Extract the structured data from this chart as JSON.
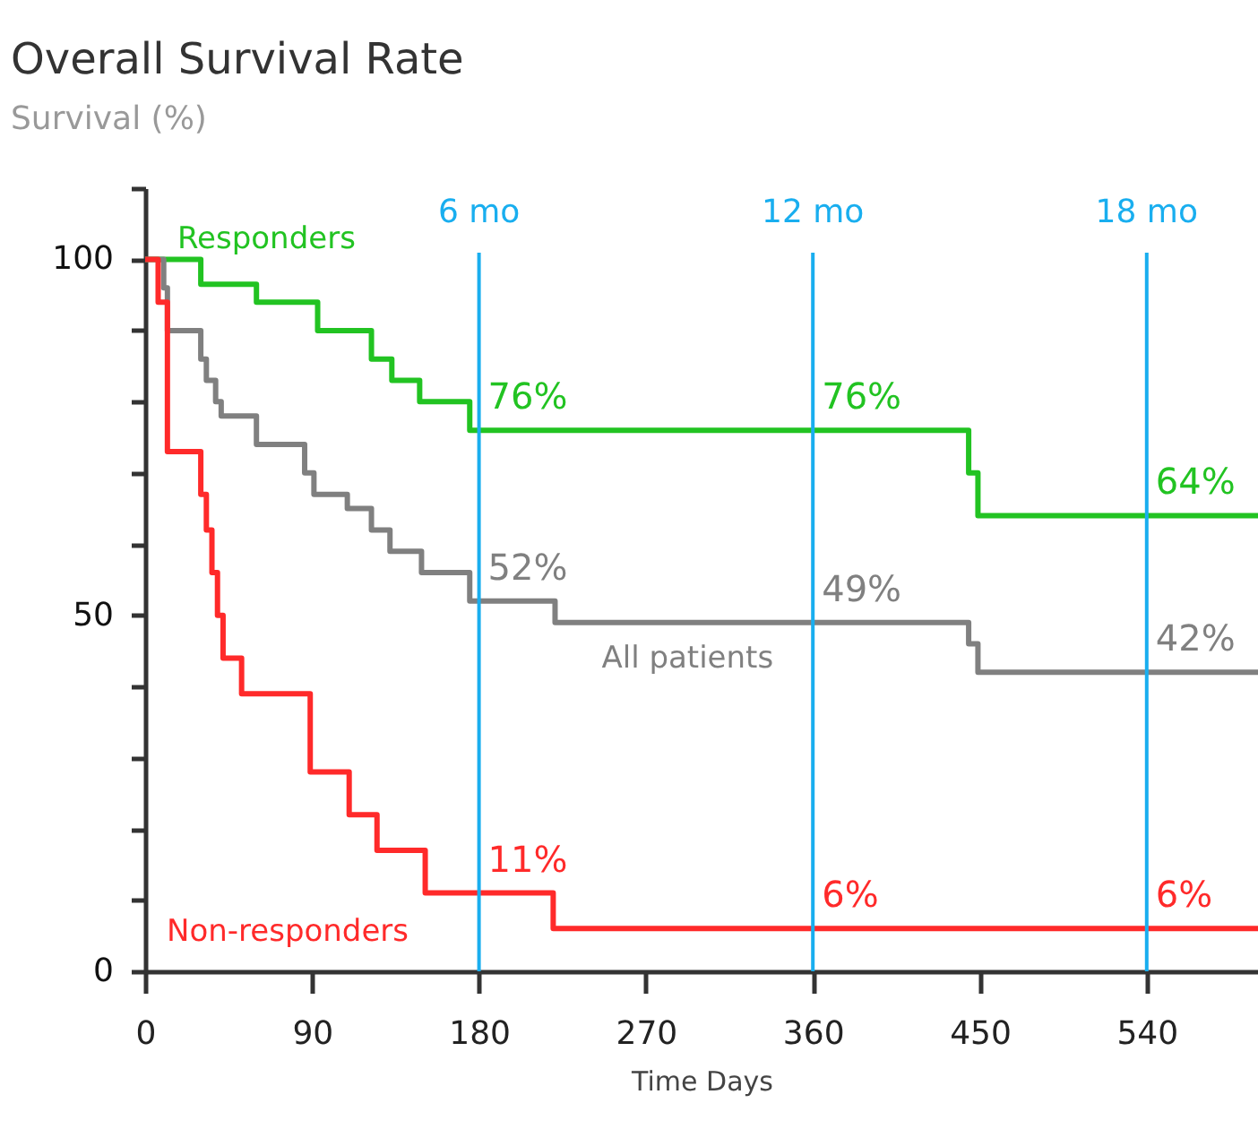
{
  "chart_data": {
    "type": "step",
    "title": "Overall Survival Rate",
    "ylabel": "Survival (%)",
    "xlabel": "Time Days",
    "xlim": [
      0,
      600
    ],
    "xticks": [
      0,
      90,
      180,
      270,
      360,
      450,
      540
    ],
    "ylim": [
      0,
      110
    ],
    "yticks": [
      {
        "value": 0,
        "label": "0"
      },
      {
        "value": 10,
        "label": null
      },
      {
        "value": 20,
        "label": null
      },
      {
        "value": 30,
        "label": null
      },
      {
        "value": 40,
        "label": null
      },
      {
        "value": 50,
        "label": "50"
      },
      {
        "value": 60,
        "label": null
      },
      {
        "value": 70,
        "label": null
      },
      {
        "value": 80,
        "label": null
      },
      {
        "value": 90,
        "label": null
      },
      {
        "value": 100,
        "label": "100"
      },
      {
        "value": 110,
        "label": null
      }
    ],
    "grid": false,
    "marker": "none",
    "line_style": "solid",
    "series": [
      {
        "name": "Responders",
        "color": "#22c322",
        "x": [
          0,
          30,
          60,
          93,
          122,
          133,
          148,
          175,
          444,
          449,
          600
        ],
        "values": [
          100,
          96.5,
          94,
          90,
          86,
          83,
          80,
          76,
          70,
          64,
          64
        ]
      },
      {
        "name": "All patients",
        "color": "#808080",
        "x": [
          0,
          10,
          12,
          30,
          33,
          38,
          41,
          60,
          86,
          91,
          109,
          122,
          132,
          149,
          175,
          221,
          444,
          449,
          600
        ],
        "values": [
          100,
          96,
          90,
          86,
          83,
          80,
          78,
          74,
          70,
          67,
          65,
          62,
          59,
          56,
          52,
          49,
          46,
          42,
          42
        ]
      },
      {
        "name": "Non-responders",
        "color": "#ff2a2a",
        "x": [
          0,
          7,
          12,
          30,
          33,
          36,
          39,
          42,
          52,
          89,
          110,
          125,
          151,
          220,
          600
        ],
        "values": [
          100,
          94,
          73,
          67,
          62,
          56,
          50,
          44,
          39,
          28,
          22,
          17,
          11,
          6,
          6
        ]
      }
    ],
    "ref_lines": [
      {
        "axis": "x",
        "value": 180,
        "label": "6 mo",
        "color": "#19aeef"
      },
      {
        "axis": "x",
        "value": 360,
        "label": "12 mo",
        "color": "#19aeef"
      },
      {
        "axis": "x",
        "value": 540,
        "label": "18 mo",
        "color": "#19aeef"
      }
    ],
    "annotations": [
      {
        "text": "76%",
        "x": 180,
        "y": 76
      },
      {
        "text": "52%",
        "x": 180,
        "y": 52
      },
      {
        "text": "11%",
        "x": 180,
        "y": 11
      },
      {
        "text": "76%",
        "x": 360,
        "y": 76
      },
      {
        "text": "49%",
        "x": 360,
        "y": 49
      },
      {
        "text": "6%",
        "x": 360,
        "y": 6
      },
      {
        "text": "64%",
        "x": 540,
        "y": 64
      },
      {
        "text": "42%",
        "x": 540,
        "y": 42
      },
      {
        "text": "6%",
        "x": 540,
        "y": 6
      }
    ]
  }
}
